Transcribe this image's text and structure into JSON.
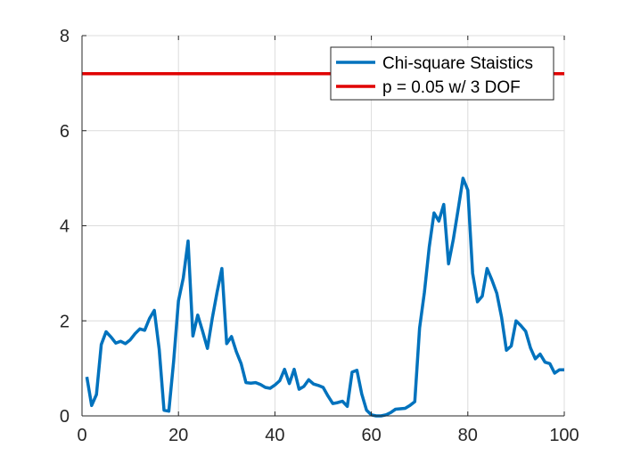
{
  "colors": {
    "background": "#ffffff",
    "axis": "#262626",
    "grid": "#dcdcdc",
    "chi_square": "#0072BD",
    "threshold": "#E00000"
  },
  "chart_data": {
    "type": "line",
    "title": "",
    "xlabel": "",
    "ylabel": "",
    "xlim": [
      0,
      100
    ],
    "ylim": [
      0,
      8
    ],
    "xticks": [
      0,
      20,
      40,
      60,
      80,
      100
    ],
    "yticks": [
      0,
      2,
      4,
      6,
      8
    ],
    "x_tick_labels": [
      "0",
      "20",
      "40",
      "60",
      "80",
      "100"
    ],
    "y_tick_labels": [
      "0",
      "2",
      "4",
      "6",
      "8"
    ],
    "grid": true,
    "legend_position": "top-right",
    "series": [
      {
        "name": "Chi-square Staistics",
        "color": "#0072BD",
        "x": [
          1,
          2,
          3,
          4,
          5,
          6,
          7,
          8,
          9,
          10,
          11,
          12,
          13,
          14,
          15,
          16,
          17,
          18,
          19,
          20,
          21,
          22,
          23,
          24,
          25,
          26,
          27,
          28,
          29,
          30,
          31,
          32,
          33,
          34,
          35,
          36,
          37,
          38,
          39,
          40,
          41,
          42,
          43,
          44,
          45,
          46,
          47,
          48,
          49,
          50,
          51,
          52,
          53,
          54,
          55,
          56,
          57,
          58,
          59,
          60,
          61,
          62,
          63,
          64,
          65,
          66,
          67,
          68,
          69,
          70,
          71,
          72,
          73,
          74,
          75,
          76,
          77,
          78,
          79,
          80,
          81,
          82,
          83,
          84,
          85,
          86,
          87,
          88,
          89,
          90,
          91,
          92,
          93,
          94,
          95,
          96,
          97,
          98,
          99,
          100
        ],
        "y": [
          0.82,
          0.22,
          0.45,
          1.5,
          1.77,
          1.66,
          1.53,
          1.57,
          1.52,
          1.6,
          1.73,
          1.83,
          1.8,
          2.05,
          2.22,
          1.4,
          0.12,
          0.1,
          1.15,
          2.42,
          2.9,
          3.68,
          1.68,
          2.12,
          1.78,
          1.42,
          2.05,
          2.6,
          3.1,
          1.52,
          1.67,
          1.35,
          1.1,
          0.7,
          0.69,
          0.7,
          0.66,
          0.6,
          0.58,
          0.65,
          0.74,
          0.98,
          0.68,
          0.98,
          0.56,
          0.62,
          0.76,
          0.67,
          0.64,
          0.6,
          0.42,
          0.26,
          0.28,
          0.31,
          0.2,
          0.92,
          0.96,
          0.46,
          0.12,
          0.02,
          0.0,
          0.0,
          0.02,
          0.07,
          0.14,
          0.15,
          0.16,
          0.22,
          0.3,
          1.85,
          2.6,
          3.55,
          4.27,
          4.1,
          4.45,
          3.2,
          3.72,
          4.35,
          5.0,
          4.75,
          3.0,
          2.4,
          2.52,
          3.1,
          2.86,
          2.58,
          2.07,
          1.38,
          1.47,
          2.0,
          1.9,
          1.78,
          1.43,
          1.2,
          1.3,
          1.13,
          1.1,
          0.9,
          0.97,
          0.97
        ]
      },
      {
        "name": "p = 0.05 w/ 3 DOF",
        "color": "#E00000",
        "x": [
          0,
          100
        ],
        "y": [
          7.2,
          7.2
        ]
      }
    ]
  }
}
